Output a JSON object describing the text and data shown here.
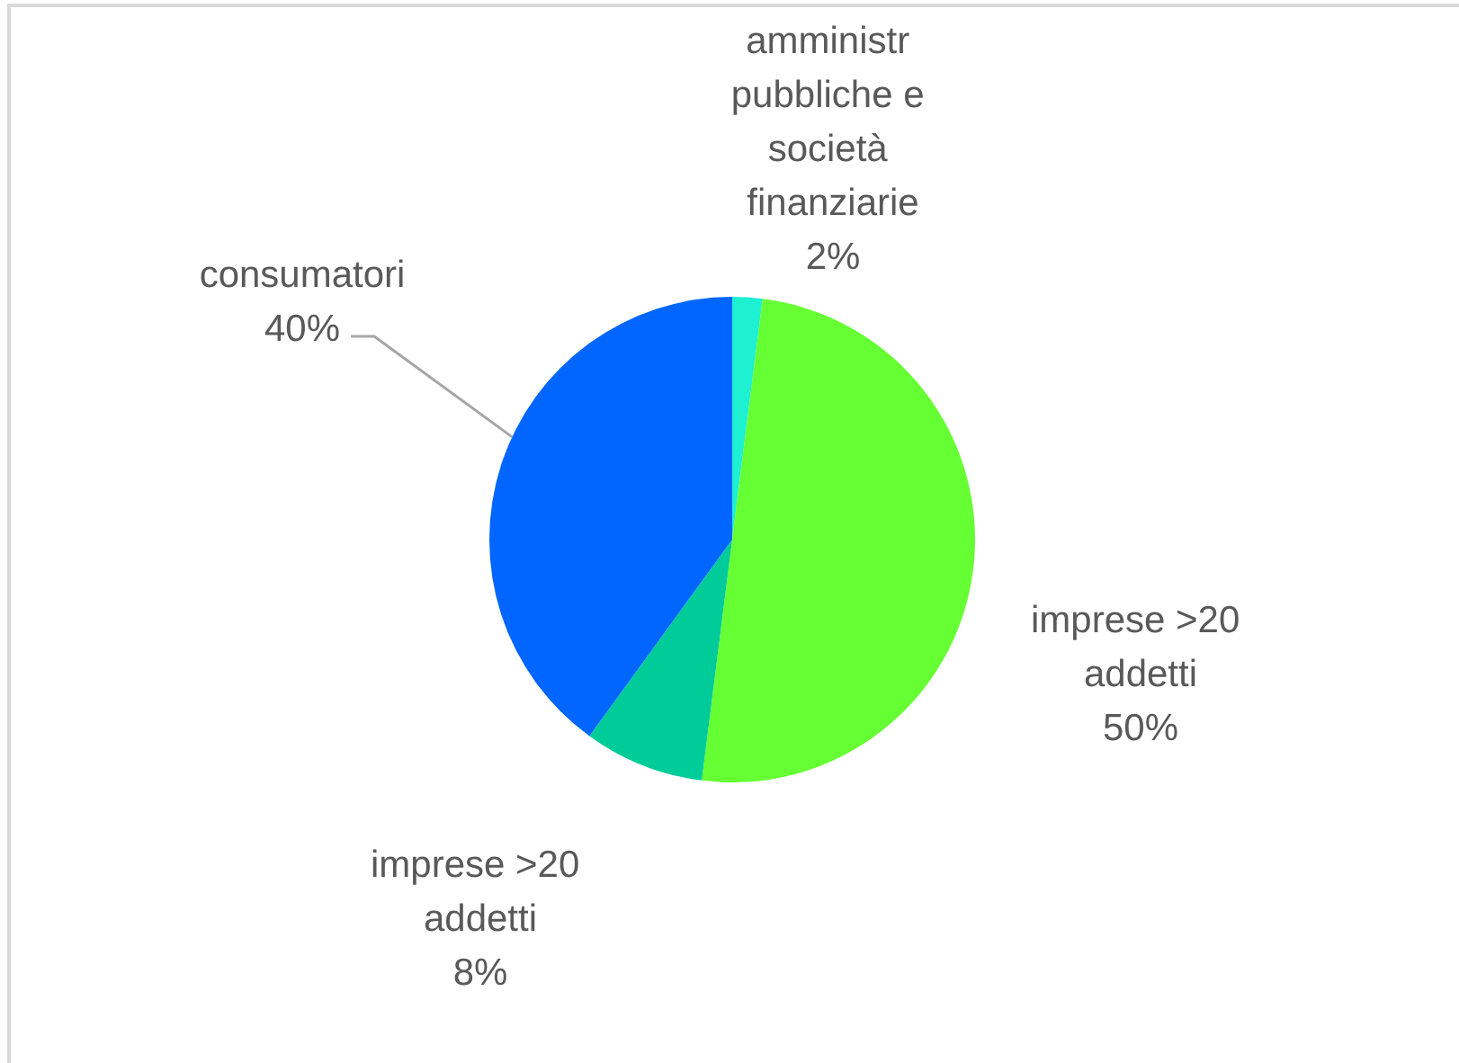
{
  "chart_data": {
    "type": "pie",
    "categories": [
      "amministr pubbliche e società finanziarie",
      "imprese >20 addetti",
      "imprese >20 addetti",
      "consumatori"
    ],
    "values": [
      2,
      50,
      8,
      40
    ],
    "colors": [
      "#1ef0d2",
      "#66ff33",
      "#00cc99",
      "#0066ff"
    ],
    "value_labels": [
      "2%",
      "50%",
      "8%",
      "40%"
    ]
  }
}
